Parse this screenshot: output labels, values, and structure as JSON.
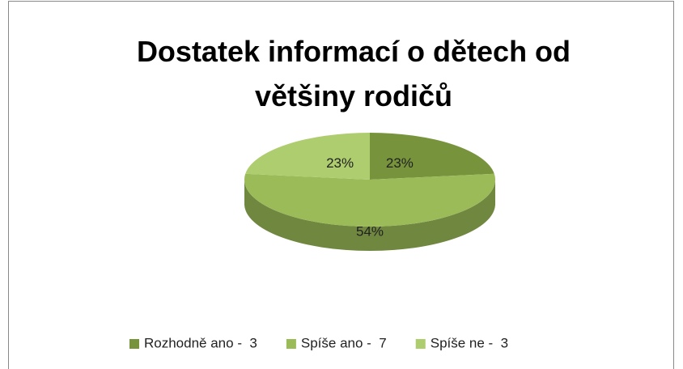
{
  "chart_data": {
    "type": "pie",
    "title": "Dostatek informací o dětech od většiny rodičů",
    "categories": [
      "Rozhodně ano -  3",
      "Spíše ano -  7",
      "Spíše ne -  3"
    ],
    "values": [
      23,
      54,
      23
    ],
    "value_labels": [
      "23%",
      "54%",
      "23%"
    ],
    "colors": [
      "#77933c",
      "#9bbb59",
      "#adcd6f"
    ],
    "legend": "bottom"
  }
}
